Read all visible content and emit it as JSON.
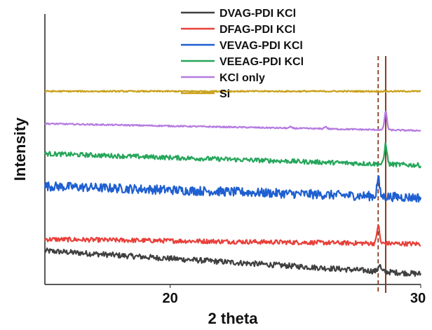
{
  "chart_data": {
    "type": "line",
    "xlabel": "2 theta",
    "ylabel": "Intensity",
    "xlim": [
      15,
      30
    ],
    "x_ticks": [
      20,
      30
    ],
    "y_ticks_shown": false,
    "grid": false,
    "legend_position": "top-center",
    "reference_lines": [
      {
        "x": 28.3,
        "style": "dashed",
        "color": "#8b3a1f"
      },
      {
        "x": 28.6,
        "style": "solid",
        "color": "#8b3a1f"
      }
    ],
    "series": [
      {
        "name": "DVAG-PDI KCl",
        "color": "#404040",
        "start": 0.1,
        "end": 0.0,
        "peaks": [
          {
            "x": 28.35,
            "height": 0.03
          }
        ],
        "noise": 0.012
      },
      {
        "name": "DFAG-PDI KCl",
        "color": "#e8403a",
        "start": 0.15,
        "end": 0.13,
        "peaks": [
          {
            "x": 28.3,
            "height": 0.08
          }
        ],
        "noise": 0.01
      },
      {
        "name": "VEVAG-PDI KCl",
        "color": "#1f5fd1",
        "start": 0.38,
        "end": 0.33,
        "peaks": [
          {
            "x": 28.3,
            "height": 0.08
          }
        ],
        "noise": 0.02
      },
      {
        "name": "VEEAG-PDI KCl",
        "color": "#26a65b",
        "start": 0.52,
        "end": 0.47,
        "peaks": [
          {
            "x": 28.6,
            "height": 0.09
          }
        ],
        "noise": 0.01
      },
      {
        "name": "KCl only",
        "color": "#b57be0",
        "start": 0.65,
        "end": 0.62,
        "peaks": [
          {
            "x": 28.6,
            "height": 0.08
          },
          {
            "x": 26.2,
            "height": 0.01
          },
          {
            "x": 24.8,
            "height": 0.005
          }
        ],
        "noise": 0.003
      },
      {
        "name": "Si",
        "color": "#c9a01a",
        "start": 0.79,
        "end": 0.79,
        "peaks": [],
        "noise": 0.003
      }
    ]
  }
}
